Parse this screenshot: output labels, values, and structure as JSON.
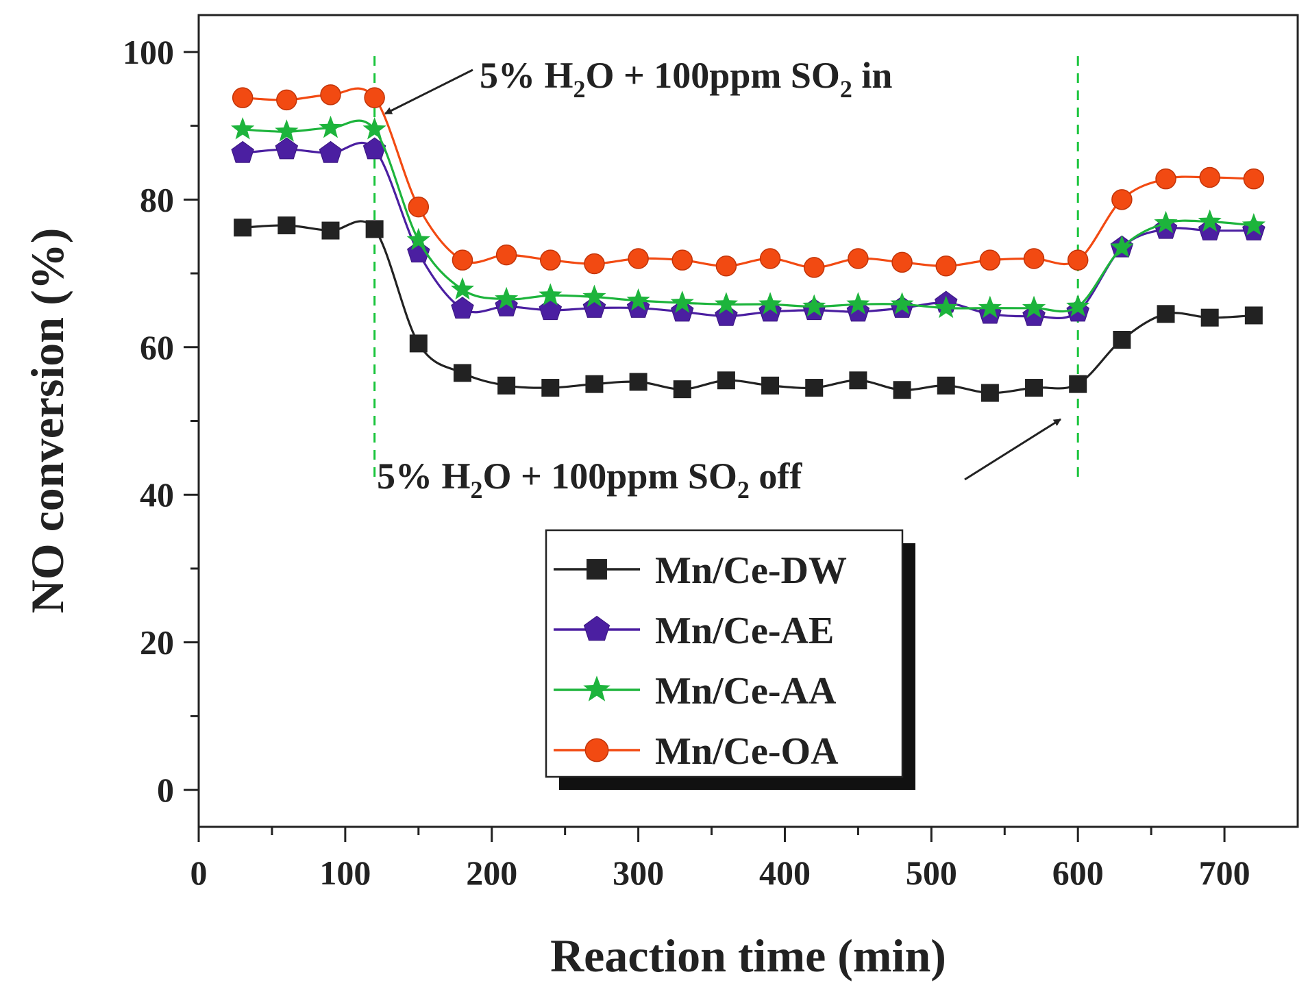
{
  "chart_data": {
    "type": "line",
    "title": "",
    "xlabel": "Reaction time (min)",
    "ylabel": "NO conversion (%)",
    "xlim": [
      0,
      750
    ],
    "ylim": [
      -5,
      105
    ],
    "xticks": [
      0,
      100,
      200,
      300,
      400,
      500,
      600,
      700
    ],
    "yticks": [
      0,
      20,
      40,
      60,
      80,
      100
    ],
    "x": [
      30,
      60,
      90,
      120,
      150,
      180,
      210,
      240,
      270,
      300,
      330,
      360,
      390,
      420,
      450,
      480,
      510,
      540,
      570,
      600,
      630,
      660,
      690,
      720
    ],
    "series": [
      {
        "name": "Mn/Ce-DW",
        "color": "#222222",
        "marker": "square",
        "values": [
          76.2,
          76.5,
          75.8,
          76.0,
          60.5,
          56.5,
          54.8,
          54.5,
          55.0,
          55.3,
          54.3,
          55.5,
          54.8,
          54.5,
          55.5,
          54.2,
          54.8,
          53.8,
          54.5,
          55.0,
          61.0,
          64.5,
          64.0,
          64.3
        ]
      },
      {
        "name": "Mn/Ce-AE",
        "color": "#4b1fa1",
        "marker": "pentagon",
        "values": [
          86.3,
          86.8,
          86.3,
          86.8,
          72.8,
          65.2,
          65.5,
          65.0,
          65.3,
          65.3,
          64.8,
          64.2,
          64.8,
          65.0,
          64.8,
          65.3,
          66.0,
          64.5,
          64.2,
          64.8,
          73.5,
          76.0,
          75.8,
          75.8
        ]
      },
      {
        "name": "Mn/Ce-AA",
        "color": "#1db43c",
        "marker": "star",
        "values": [
          89.5,
          89.2,
          89.7,
          89.5,
          74.5,
          67.8,
          66.5,
          67.0,
          66.8,
          66.3,
          66.0,
          65.8,
          65.8,
          65.5,
          65.8,
          65.8,
          65.3,
          65.3,
          65.3,
          65.5,
          73.5,
          76.8,
          77.0,
          76.5
        ]
      },
      {
        "name": "Mn/Ce-OA",
        "color": "#f24a12",
        "marker": "circle",
        "values": [
          93.8,
          93.5,
          94.2,
          93.8,
          79.0,
          71.8,
          72.5,
          71.8,
          71.3,
          72.0,
          71.8,
          71.0,
          72.0,
          70.8,
          72.0,
          71.5,
          71.0,
          71.8,
          72.0,
          71.8,
          80.0,
          82.8,
          83.0,
          82.8
        ]
      }
    ],
    "vlines": [
      {
        "x": 120,
        "color": "#19c43b",
        "style": "dashed"
      },
      {
        "x": 600,
        "color": "#19c43b",
        "style": "dashed"
      }
    ],
    "annotations": [
      {
        "id": "on",
        "text_parts": [
          "5% H",
          "2",
          "O + 100ppm SO",
          "2",
          " in"
        ],
        "arrow_target": {
          "x": 121,
          "y": 93
        }
      },
      {
        "id": "off",
        "text_parts": [
          "5% H",
          "2",
          "O + 100ppm SO",
          "2",
          " off"
        ],
        "arrow_target": {
          "x": 598,
          "y": 56
        }
      }
    ],
    "legend": {
      "position": "bottom-center",
      "box_style": "shadowed"
    },
    "grid": false
  }
}
